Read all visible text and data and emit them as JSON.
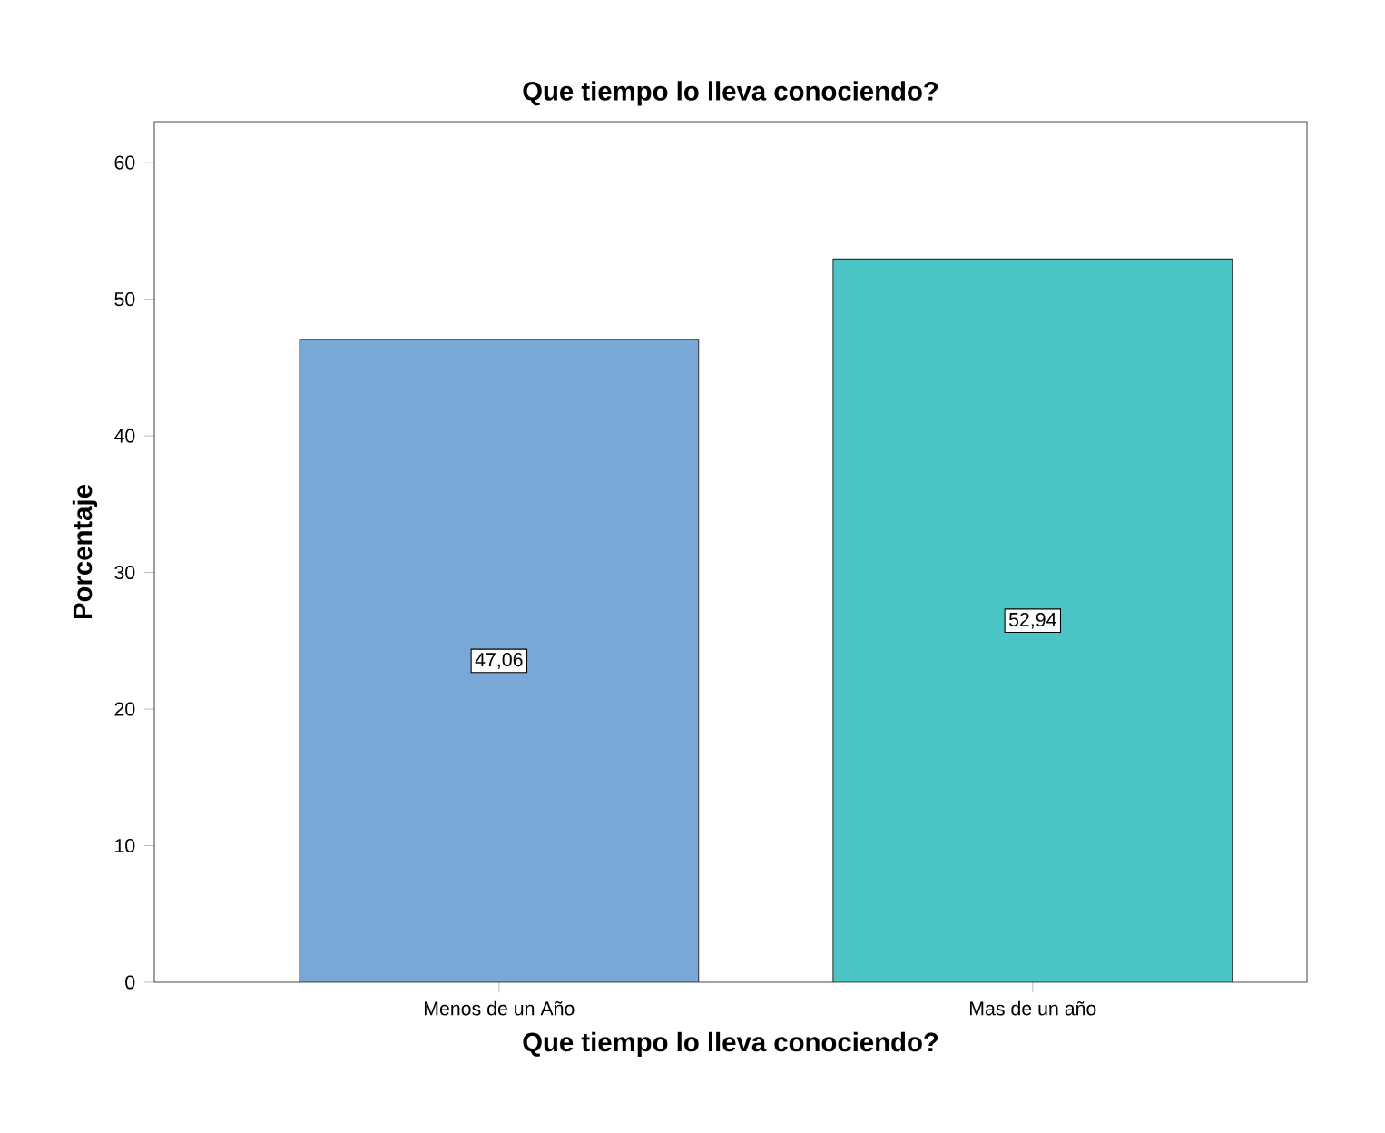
{
  "chart_data": {
    "type": "bar",
    "title": "Que tiempo lo lleva conociendo?",
    "xlabel": "Que tiempo lo lleva conociendo?",
    "ylabel": "Porcentaje",
    "categories": [
      "Menos de un Año",
      "Mas de un año"
    ],
    "values": [
      47.06,
      52.94
    ],
    "colors": [
      "#79a7d6",
      "#4bc4c6"
    ],
    "value_labels": [
      "47,06",
      "52,94"
    ],
    "ylim": [
      0,
      63
    ],
    "yticks": [
      0,
      10,
      20,
      30,
      40,
      50,
      60
    ],
    "grid": false
  }
}
